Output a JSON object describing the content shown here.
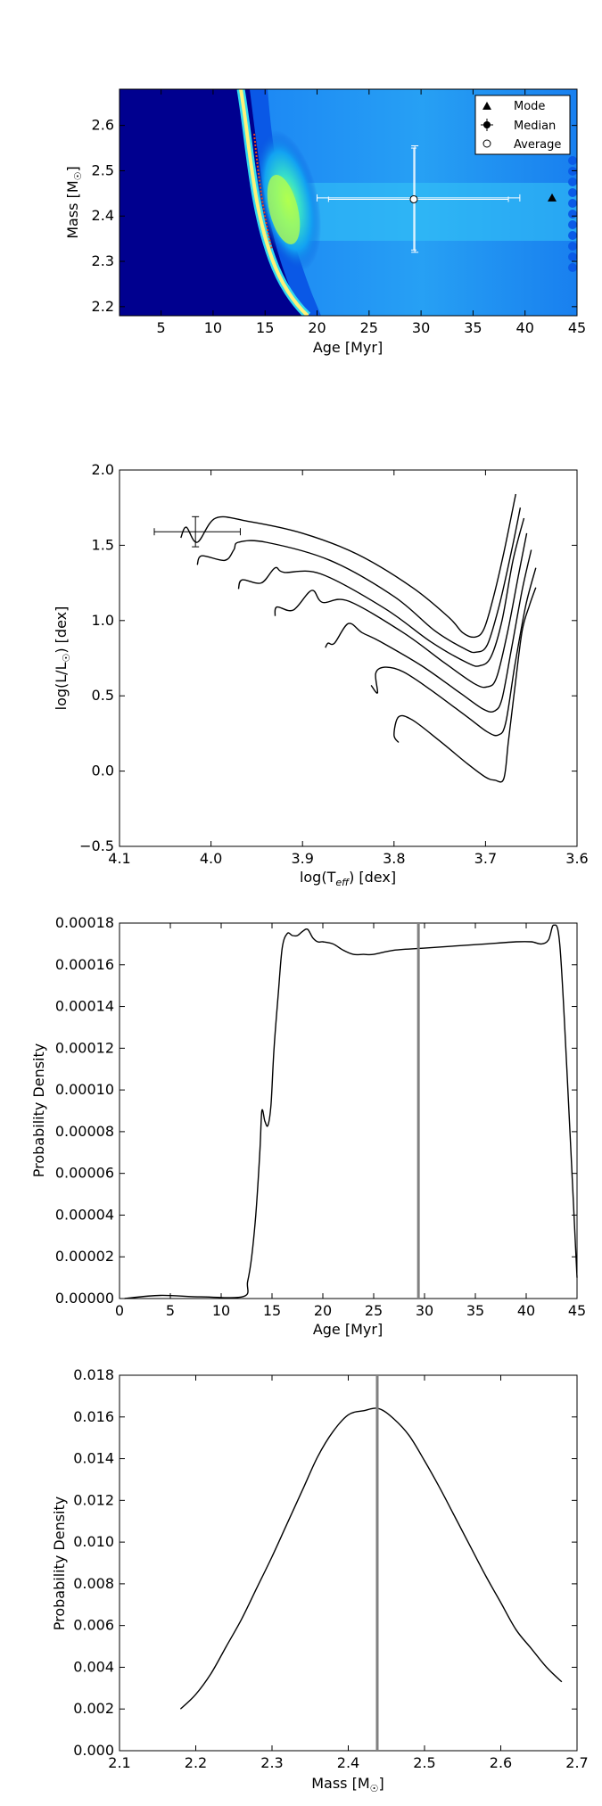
{
  "chart_data": [
    {
      "type": "heatmap",
      "xlabel": "Age [Myr]",
      "ylabel": "Mass [M",
      "ylabel_sub": "☉",
      "ylabel_end": "]",
      "xlim": [
        1,
        45
      ],
      "ylim": [
        2.18,
        2.68
      ],
      "xticks": [
        5,
        10,
        15,
        20,
        25,
        30,
        35,
        40,
        45
      ],
      "yticks": [
        2.2,
        2.3,
        2.4,
        2.5,
        2.6
      ],
      "ytick_labels": [
        "2.2",
        "2.3",
        "2.4",
        "2.5",
        "2.6"
      ],
      "legend": {
        "placement": "top-right",
        "entries": [
          "Mode",
          "Median",
          "Average"
        ]
      },
      "mode": {
        "x": 42.6,
        "y": 2.44
      },
      "median": {
        "x": 29.4,
        "y": 2.44,
        "xerr": [
          20,
          39.5
        ],
        "yerr": [
          2.32,
          2.555
        ]
      },
      "average": {
        "x": 29.3,
        "y": 2.437,
        "xerr": [
          21.1,
          38.4
        ],
        "yerr": [
          2.325,
          2.55
        ]
      },
      "colormap": "jet"
    },
    {
      "type": "line",
      "xlabel": "log(T",
      "xlabel_sub": "eff",
      "xlabel_end": ") [dex]",
      "ylabel": "log(L/L",
      "ylabel_sub": "☉",
      "ylabel_end": ") [dex]",
      "xlim": [
        4.1,
        3.6
      ],
      "ylim": [
        -0.5,
        2.0
      ],
      "xticks": [
        4.1,
        4.0,
        3.9,
        3.8,
        3.7,
        3.6
      ],
      "xtick_labels": [
        "4.1",
        "4.0",
        "3.9",
        "3.8",
        "3.7",
        "3.6"
      ],
      "yticks": [
        -0.5,
        0.0,
        0.5,
        1.0,
        1.5,
        2.0
      ],
      "ytick_labels": [
        "−0.5",
        "0.0",
        "0.5",
        "1.0",
        "1.5",
        "2.0"
      ],
      "observation": {
        "x": 4.017,
        "y": 1.59,
        "xerr": [
          4.062,
          3.968
        ],
        "yerr": [
          1.49,
          1.69
        ]
      },
      "isochrones": [
        [
          [
            4.033,
            1.55
          ],
          [
            4.027,
            1.62
          ],
          [
            4.015,
            1.52
          ],
          [
            3.995,
            1.68
          ],
          [
            3.96,
            1.66
          ],
          [
            3.9,
            1.58
          ],
          [
            3.84,
            1.44
          ],
          [
            3.78,
            1.22
          ],
          [
            3.74,
            1.02
          ],
          [
            3.725,
            0.92
          ],
          [
            3.712,
            0.89
          ],
          [
            3.702,
            0.94
          ],
          [
            3.692,
            1.14
          ],
          [
            3.68,
            1.45
          ],
          [
            3.667,
            1.84
          ]
        ],
        [
          [
            4.015,
            1.37
          ],
          [
            4.01,
            1.43
          ],
          [
            3.985,
            1.4
          ],
          [
            3.975,
            1.47
          ],
          [
            3.97,
            1.52
          ],
          [
            3.94,
            1.52
          ],
          [
            3.87,
            1.4
          ],
          [
            3.8,
            1.16
          ],
          [
            3.755,
            0.93
          ],
          [
            3.722,
            0.81
          ],
          [
            3.71,
            0.79
          ],
          [
            3.698,
            0.84
          ],
          [
            3.685,
            1.1
          ],
          [
            3.672,
            1.45
          ],
          [
            3.662,
            1.75
          ]
        ],
        [
          [
            3.97,
            1.21
          ],
          [
            3.966,
            1.27
          ],
          [
            3.945,
            1.25
          ],
          [
            3.93,
            1.35
          ],
          [
            3.92,
            1.32
          ],
          [
            3.88,
            1.31
          ],
          [
            3.81,
            1.08
          ],
          [
            3.76,
            0.86
          ],
          [
            3.72,
            0.72
          ],
          [
            3.706,
            0.7
          ],
          [
            3.694,
            0.76
          ],
          [
            3.682,
            1.0
          ],
          [
            3.67,
            1.4
          ],
          [
            3.658,
            1.68
          ]
        ],
        [
          [
            3.93,
            1.03
          ],
          [
            3.928,
            1.09
          ],
          [
            3.91,
            1.07
          ],
          [
            3.89,
            1.2
          ],
          [
            3.878,
            1.12
          ],
          [
            3.85,
            1.13
          ],
          [
            3.79,
            0.92
          ],
          [
            3.745,
            0.72
          ],
          [
            3.712,
            0.58
          ],
          [
            3.698,
            0.56
          ],
          [
            3.688,
            0.62
          ],
          [
            3.676,
            0.92
          ],
          [
            3.664,
            1.3
          ],
          [
            3.655,
            1.58
          ]
        ],
        [
          [
            3.875,
            0.82
          ],
          [
            3.872,
            0.85
          ],
          [
            3.865,
            0.85
          ],
          [
            3.85,
            0.98
          ],
          [
            3.835,
            0.92
          ],
          [
            3.815,
            0.86
          ],
          [
            3.77,
            0.7
          ],
          [
            3.728,
            0.52
          ],
          [
            3.702,
            0.41
          ],
          [
            3.69,
            0.4
          ],
          [
            3.682,
            0.48
          ],
          [
            3.672,
            0.8
          ],
          [
            3.66,
            1.2
          ],
          [
            3.65,
            1.47
          ]
        ],
        [
          [
            3.825,
            0.57
          ],
          [
            3.818,
            0.52
          ],
          [
            3.82,
            0.65
          ],
          [
            3.81,
            0.69
          ],
          [
            3.79,
            0.66
          ],
          [
            3.76,
            0.54
          ],
          [
            3.72,
            0.36
          ],
          [
            3.698,
            0.26
          ],
          [
            3.686,
            0.24
          ],
          [
            3.678,
            0.32
          ],
          [
            3.668,
            0.7
          ],
          [
            3.656,
            1.1
          ],
          [
            3.645,
            1.35
          ]
        ],
        [
          [
            3.795,
            0.19
          ],
          [
            3.8,
            0.24
          ],
          [
            3.795,
            0.36
          ],
          [
            3.78,
            0.34
          ],
          [
            3.75,
            0.2
          ],
          [
            3.72,
            0.05
          ],
          [
            3.7,
            -0.04
          ],
          [
            3.69,
            -0.06
          ],
          [
            3.68,
            -0.05
          ],
          [
            3.675,
            0.2
          ],
          [
            3.668,
            0.55
          ],
          [
            3.66,
            0.93
          ],
          [
            3.652,
            1.1
          ],
          [
            3.645,
            1.22
          ]
        ]
      ]
    },
    {
      "type": "line",
      "xlabel": "Age [Myr]",
      "ylabel": "Probability Density",
      "xlim": [
        0,
        45
      ],
      "ylim": [
        0,
        0.00018
      ],
      "xticks": [
        0,
        5,
        10,
        15,
        20,
        25,
        30,
        35,
        40,
        45
      ],
      "yticks": [
        0,
        2e-05,
        4e-05,
        6e-05,
        8e-05,
        0.0001,
        0.00012,
        0.00014,
        0.00016,
        0.00018
      ],
      "ytick_labels": [
        "0.00000",
        "0.00002",
        "0.00004",
        "0.00006",
        "0.00008",
        "0.00010",
        "0.00012",
        "0.00014",
        "0.00016",
        "0.00018"
      ],
      "vline": 29.4,
      "x": [
        0.5,
        4,
        8,
        12.2,
        12.6,
        13.0,
        13.4,
        13.8,
        14.0,
        14.3,
        14.6,
        14.9,
        15.2,
        15.6,
        16.0,
        16.5,
        17.0,
        17.5,
        18.0,
        18.5,
        19.0,
        19.5,
        20.0,
        21.0,
        22.0,
        23.0,
        24.0,
        25.0,
        27.0,
        30.0,
        33.0,
        36.0,
        39.0,
        40.5,
        41.5,
        42.2,
        42.7,
        43.3,
        44.0,
        45.0
      ],
      "y": [
        0.0,
        1.5e-06,
        8e-07,
        1e-06,
        8e-06,
        2e-05,
        4e-05,
        7e-05,
        9e-05,
        8.5e-05,
        8.3e-05,
        9.3e-05,
        0.00012,
        0.000145,
        0.000168,
        0.000175,
        0.000174,
        0.000174,
        0.000176,
        0.000177,
        0.000173,
        0.000171,
        0.000171,
        0.00017,
        0.000167,
        0.000165,
        0.000165,
        0.000165,
        0.000167,
        0.000168,
        0.000169,
        0.00017,
        0.000171,
        0.000171,
        0.00017,
        0.000172,
        0.000179,
        0.00017,
        0.00011,
        1e-05
      ]
    },
    {
      "type": "line",
      "xlabel": "Mass [M",
      "xlabel_sub": "☉",
      "xlabel_end": "]",
      "ylabel": "Probability Density",
      "xlim": [
        2.1,
        2.7
      ],
      "ylim": [
        0,
        0.018
      ],
      "xticks": [
        2.1,
        2.2,
        2.3,
        2.4,
        2.5,
        2.6,
        2.7
      ],
      "xtick_labels": [
        "2.1",
        "2.2",
        "2.3",
        "2.4",
        "2.5",
        "2.6",
        "2.7"
      ],
      "yticks": [
        0,
        0.002,
        0.004,
        0.006,
        0.008,
        0.01,
        0.012,
        0.014,
        0.016,
        0.018
      ],
      "ytick_labels": [
        "0.000",
        "0.002",
        "0.004",
        "0.006",
        "0.008",
        "0.010",
        "0.012",
        "0.014",
        "0.016",
        "0.018"
      ],
      "vline": 2.438,
      "x": [
        2.18,
        2.2,
        2.22,
        2.24,
        2.26,
        2.28,
        2.3,
        2.32,
        2.34,
        2.36,
        2.38,
        2.4,
        2.42,
        2.44,
        2.46,
        2.48,
        2.5,
        2.52,
        2.54,
        2.56,
        2.58,
        2.6,
        2.62,
        2.64,
        2.66,
        2.68
      ],
      "y": [
        0.002,
        0.0027,
        0.0037,
        0.005,
        0.0063,
        0.0078,
        0.0093,
        0.0109,
        0.0125,
        0.0141,
        0.0153,
        0.0161,
        0.0163,
        0.0164,
        0.0159,
        0.0151,
        0.0139,
        0.0126,
        0.0112,
        0.0098,
        0.0084,
        0.0071,
        0.0058,
        0.0049,
        0.004,
        0.0033
      ]
    }
  ]
}
